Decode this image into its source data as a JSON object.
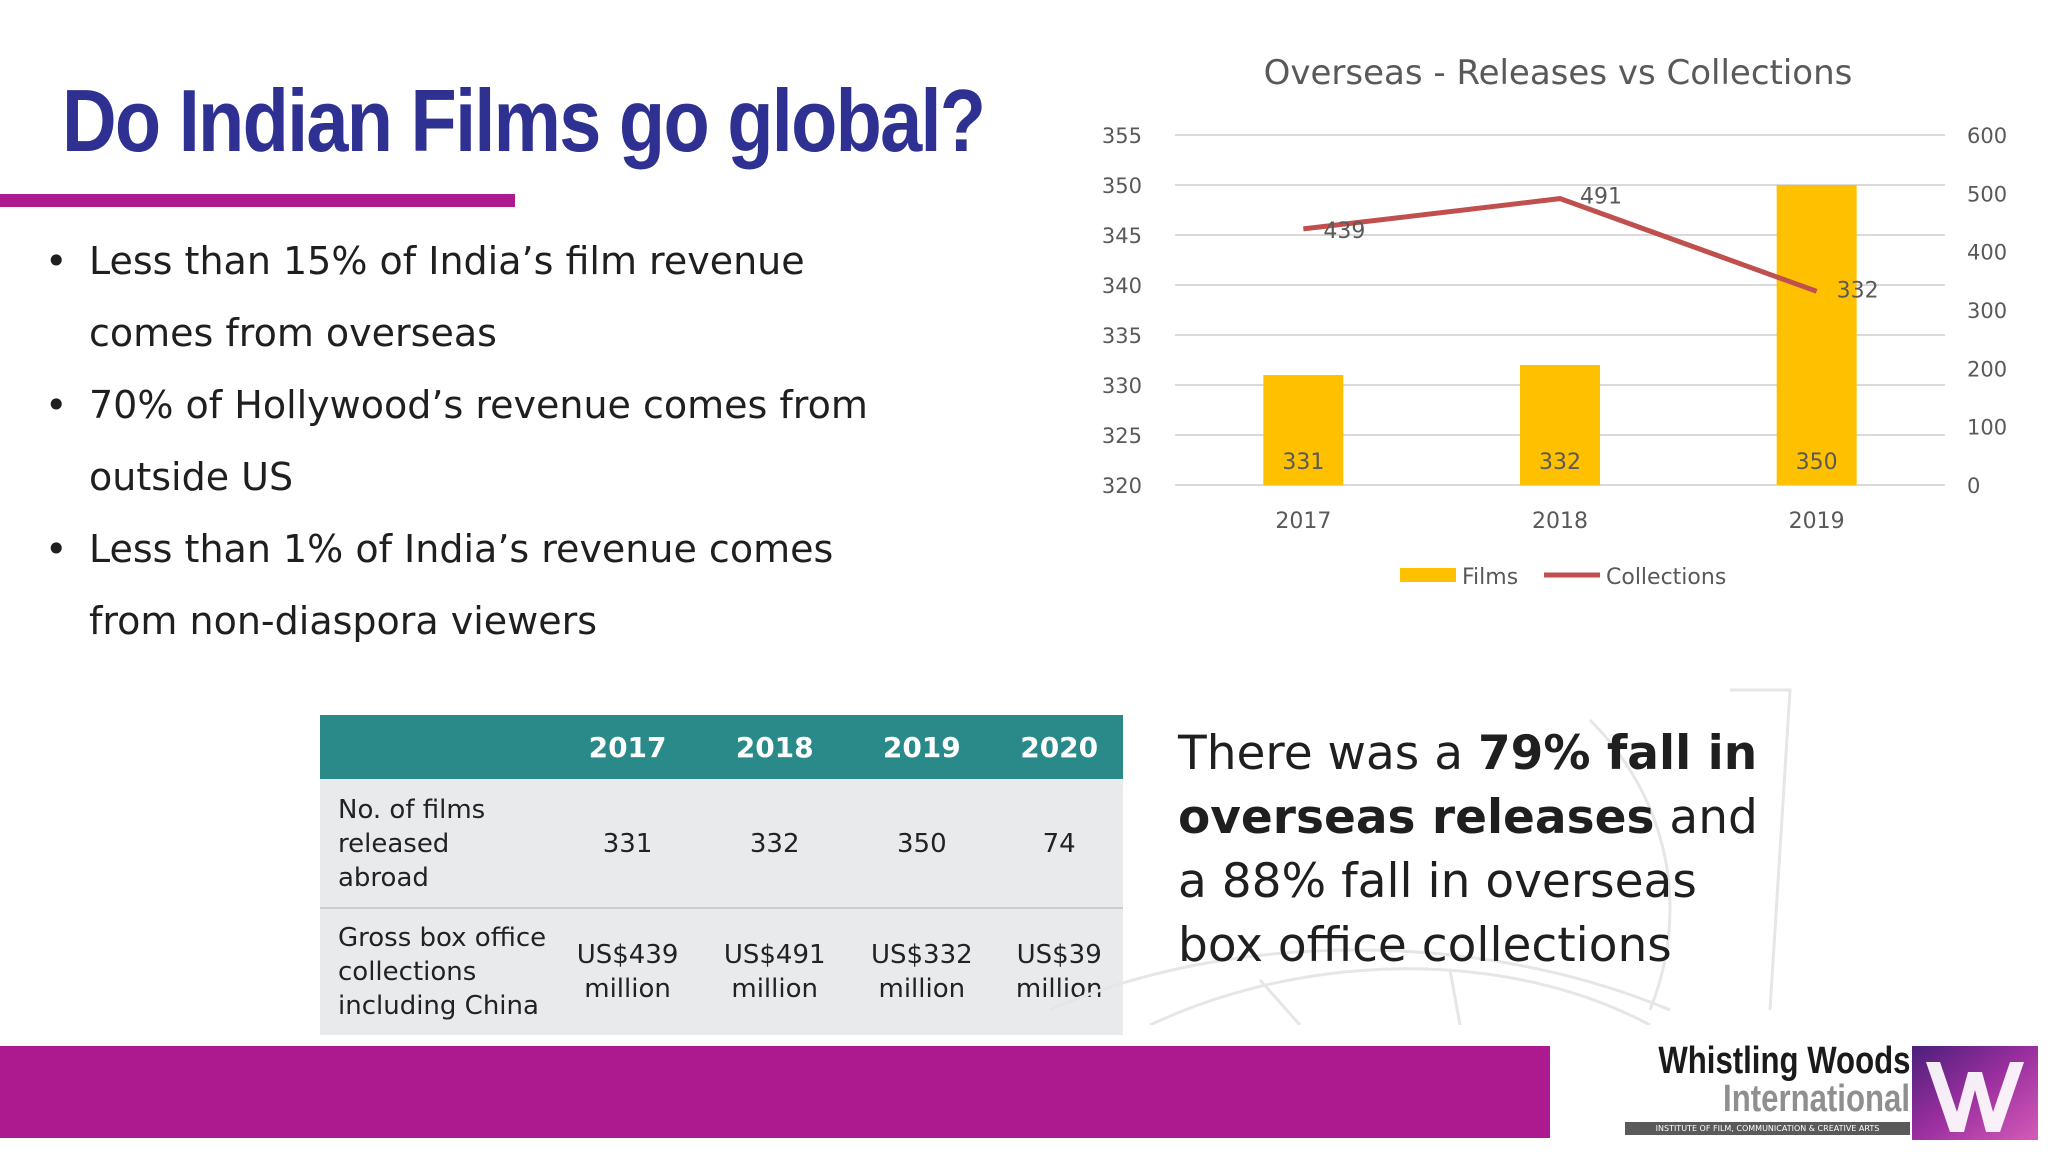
{
  "slide": {
    "title": "Do Indian Films go global?",
    "bullets": [
      [
        "Less than 15% of India’s film revenue",
        "comes from overseas"
      ],
      [
        "70% of Hollywood’s revenue comes from",
        "outside US"
      ],
      [
        "Less than 1% of India’s revenue comes",
        "from non-diaspora viewers"
      ]
    ]
  },
  "chart_data": {
    "type": "bar",
    "title": "Overseas - Releases vs Collections",
    "categories": [
      "2017",
      "2018",
      "2019"
    ],
    "y_left": {
      "min": 320,
      "max": 355,
      "step": 5
    },
    "y_right": {
      "min": 0,
      "max": 600,
      "step": 100
    },
    "grid": true,
    "legend": "bottom",
    "series": [
      {
        "name": "Films",
        "kind": "bar",
        "axis": "left",
        "color": "#ffc000",
        "values": [
          331,
          332,
          350
        ],
        "labels": [
          "331",
          "332",
          "350"
        ]
      },
      {
        "name": "Collections",
        "kind": "line",
        "axis": "right",
        "color": "#c0504d",
        "values": [
          439,
          491,
          332
        ],
        "labels": [
          "439",
          "491",
          "332"
        ]
      }
    ]
  },
  "table": {
    "headers": [
      "2017",
      "2018",
      "2019",
      "2020"
    ],
    "rows": [
      {
        "label": [
          "No. of films",
          "released abroad"
        ],
        "cells": [
          [
            "331"
          ],
          [
            "332"
          ],
          [
            "350"
          ],
          [
            "74"
          ]
        ]
      },
      {
        "label": [
          "Gross box office",
          "collections",
          "including China"
        ],
        "cells": [
          [
            "US$439",
            "million"
          ],
          [
            "US$491",
            "million"
          ],
          [
            "US$332",
            "million"
          ],
          [
            "US$39",
            "million"
          ]
        ]
      }
    ]
  },
  "callout": {
    "p1": "There was a ",
    "b1": "79% fall in",
    "b2": "overseas releases",
    "p2": " and",
    "p3": "a 88% fall in overseas",
    "p4": "box office collections"
  },
  "logo": {
    "line1": "Whistling Woods",
    "line2": "International",
    "tagline": "INSTITUTE OF FILM, COMMUNICATION & CREATIVE ARTS"
  },
  "colors": {
    "title": "#2e3192",
    "accent": "#ad1a8f",
    "table_header": "#2a8a8a"
  }
}
